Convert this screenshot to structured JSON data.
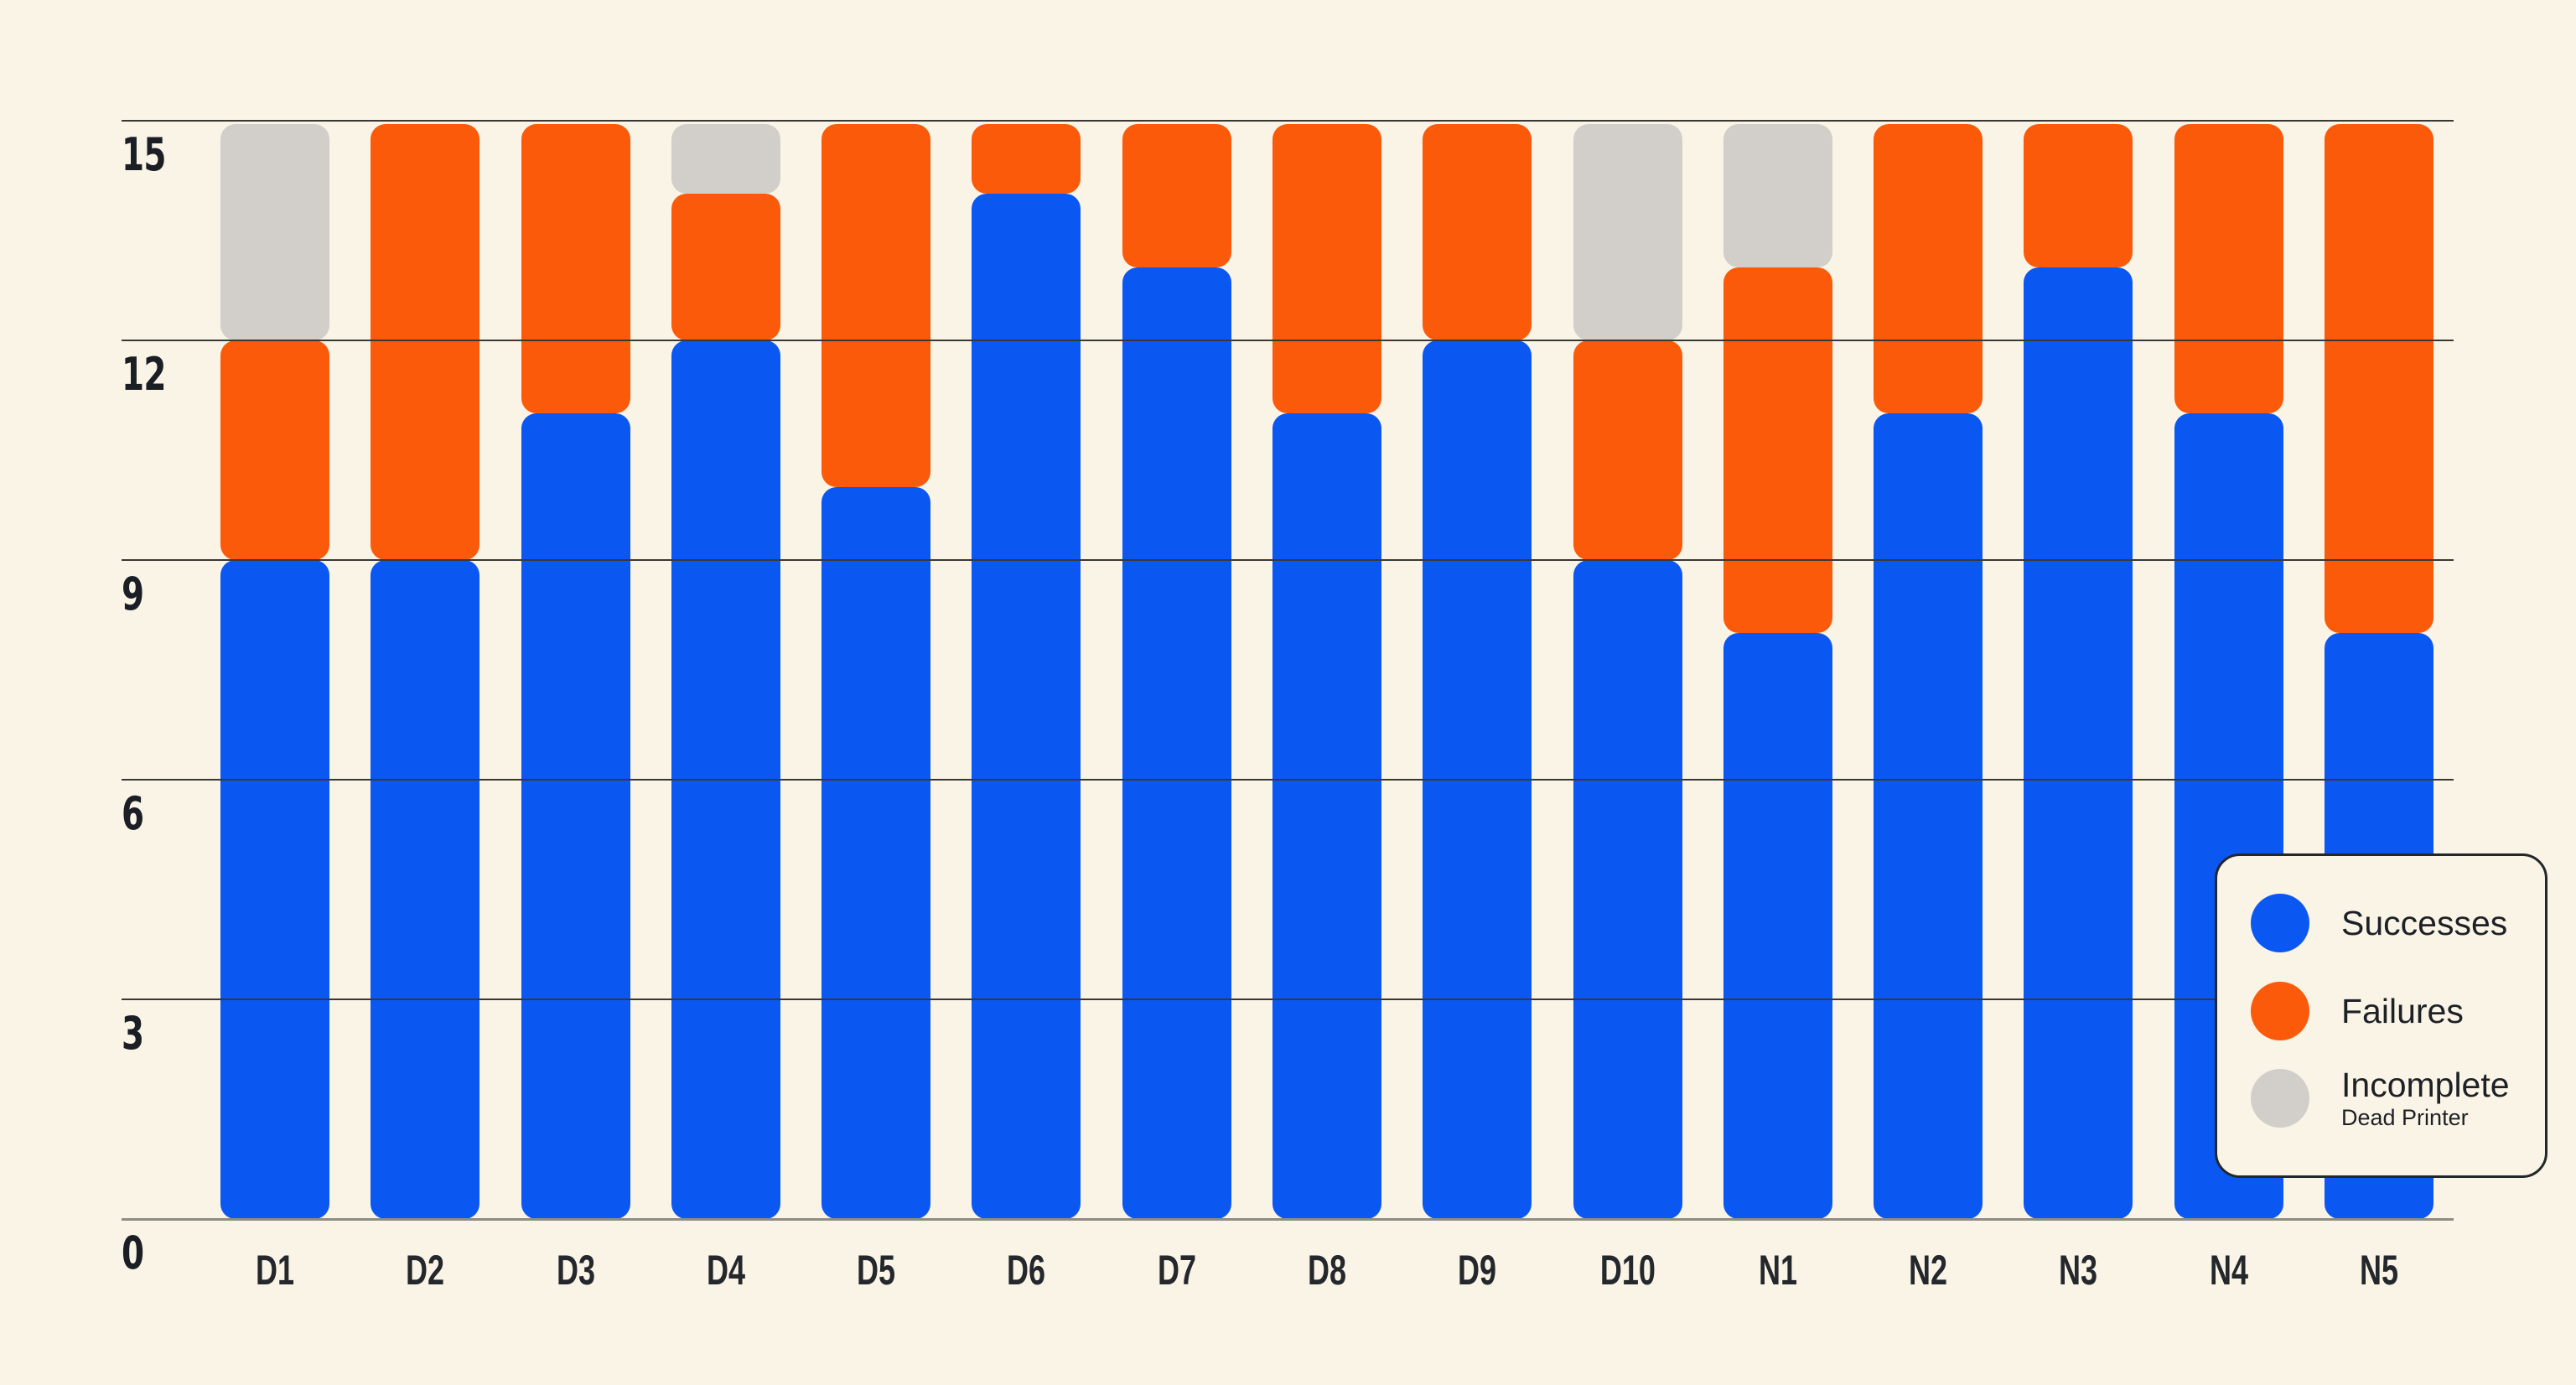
{
  "chart_data": {
    "type": "bar",
    "stacked": true,
    "title": "",
    "xlabel": "",
    "ylabel": "",
    "categories": [
      "D1",
      "D2",
      "D3",
      "D4",
      "D5",
      "D6",
      "D7",
      "D8",
      "D9",
      "D10",
      "N1",
      "N2",
      "N3",
      "N4",
      "N5"
    ],
    "series": [
      {
        "name": "Successes",
        "color": "#0b57f2",
        "values": [
          9,
          9,
          11,
          12,
          10,
          14,
          13,
          11,
          12,
          9,
          8,
          11,
          13,
          11,
          8
        ]
      },
      {
        "name": "Failures",
        "color": "#fb5a0b",
        "values": [
          3,
          6,
          4,
          2,
          5,
          1,
          2,
          4,
          3,
          3,
          5,
          4,
          2,
          4,
          7
        ]
      },
      {
        "name": "Incomplete",
        "color": "#d2cfca",
        "sublabel": "Dead Printer",
        "values": [
          3,
          0,
          0,
          1,
          0,
          0,
          0,
          0,
          0,
          3,
          2,
          0,
          0,
          0,
          0
        ]
      }
    ],
    "ylim": [
      0,
      15
    ],
    "y_ticks": [
      0,
      3,
      6,
      9,
      12,
      15
    ],
    "grid": true,
    "legend_position": "bottom-right"
  },
  "colors": {
    "background": "#f9f4e6",
    "gridline": "#3a3835",
    "axis_line": "#8f8c84",
    "tick_text": "#1b1e24",
    "legend_border": "#23262b",
    "legend_text": "#1d2126"
  }
}
